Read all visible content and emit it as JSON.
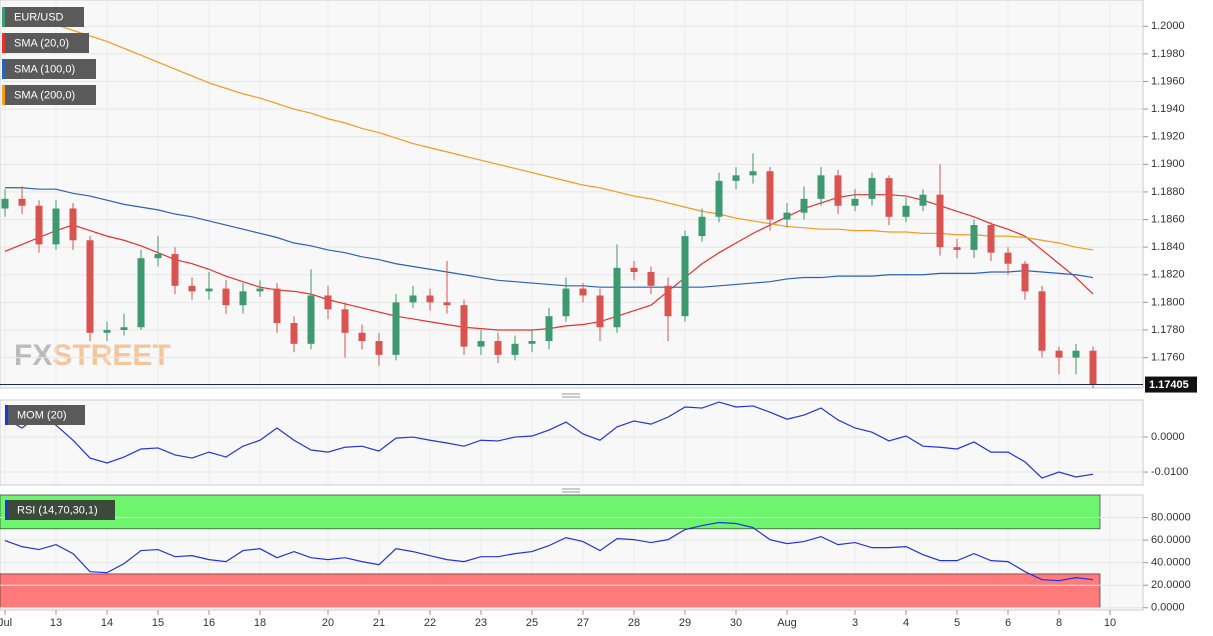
{
  "chart_data": [
    {
      "type": "candlestick",
      "title": "EUR/USD",
      "watermark": {
        "left": "FX",
        "right": "STREET"
      },
      "categories": [
        "Jul",
        null,
        null,
        "13",
        null,
        null,
        "14",
        null,
        null,
        "15",
        null,
        null,
        "16",
        null,
        null,
        "18",
        null,
        null,
        null,
        "20",
        null,
        null,
        "21",
        null,
        null,
        "22",
        null,
        null,
        "23",
        null,
        null,
        "25",
        null,
        null,
        "27",
        null,
        null,
        "28",
        null,
        null,
        "29",
        null,
        null,
        "30",
        null,
        null,
        "Aug",
        null,
        null,
        null,
        "3",
        null,
        null,
        "4",
        null,
        null,
        "5",
        null,
        null,
        "6",
        null,
        null,
        "8",
        null,
        null,
        "10"
      ],
      "open": [
        1.1868,
        1.1875,
        1.187,
        1.1842,
        1.1868,
        1.1845,
        1.1778,
        1.178,
        1.1782,
        1.1832,
        1.1835,
        1.1812,
        1.1808,
        1.181,
        1.1798,
        1.1808,
        1.181,
        1.1785,
        1.177,
        1.1805,
        1.1795,
        1.1778,
        1.1772,
        1.1762,
        1.18,
        1.1805,
        1.18,
        1.1798,
        1.1768,
        1.1772,
        1.1762,
        1.177,
        1.1772,
        1.179,
        1.181,
        1.1805,
        1.1782,
        1.1825,
        1.1822,
        1.1812,
        1.179,
        1.1848,
        1.1862,
        1.1888,
        1.1892,
        1.1895,
        1.186,
        1.1865,
        1.1875,
        1.1892,
        1.187,
        1.1875,
        1.189,
        1.1862,
        1.187,
        1.1878,
        1.184,
        1.1838,
        1.1856,
        1.1836,
        1.1828,
        1.1808,
        1.1765,
        1.176,
        1.1765,
        null
      ],
      "high": [
        1.1882,
        1.1884,
        1.1874,
        1.1874,
        1.1872,
        1.1848,
        1.1786,
        1.1792,
        1.1838,
        1.1848,
        1.184,
        1.1818,
        1.1822,
        1.1816,
        1.1814,
        1.1816,
        1.1814,
        1.179,
        1.1824,
        1.1812,
        1.18,
        1.1784,
        1.1778,
        1.1806,
        1.1812,
        1.181,
        1.183,
        1.1802,
        1.178,
        1.1778,
        1.1776,
        1.178,
        1.1796,
        1.1818,
        1.1814,
        1.181,
        1.1842,
        1.183,
        1.1826,
        1.1818,
        1.1852,
        1.1868,
        1.1894,
        1.1898,
        1.1908,
        1.1898,
        1.1872,
        1.1884,
        1.1898,
        1.1896,
        1.1882,
        1.1894,
        1.1892,
        1.1876,
        1.1882,
        1.19,
        1.1846,
        1.186,
        1.1858,
        1.184,
        1.183,
        1.1812,
        1.1768,
        1.177,
        1.1768,
        null
      ],
      "low": [
        1.1862,
        1.1864,
        1.1836,
        1.1838,
        1.1838,
        1.1772,
        1.1772,
        1.1776,
        1.178,
        1.1826,
        1.1806,
        1.1802,
        1.1802,
        1.1792,
        1.1792,
        1.1804,
        1.1778,
        1.1764,
        1.1766,
        1.1788,
        1.176,
        1.1766,
        1.1754,
        1.1758,
        1.1796,
        1.1794,
        1.1792,
        1.1762,
        1.1762,
        1.1756,
        1.1758,
        1.1764,
        1.1766,
        1.1786,
        1.18,
        1.1772,
        1.1778,
        1.1816,
        1.1806,
        1.1772,
        1.1786,
        1.1844,
        1.1858,
        1.1882,
        1.1886,
        1.1852,
        1.1854,
        1.186,
        1.187,
        1.1864,
        1.1866,
        1.187,
        1.1856,
        1.1858,
        1.1866,
        1.1834,
        1.1832,
        1.1832,
        1.183,
        1.182,
        1.1802,
        1.176,
        1.1748,
        1.1748,
        1.1738,
        null
      ],
      "close": [
        1.1875,
        1.187,
        1.1842,
        1.1868,
        1.1845,
        1.1778,
        1.178,
        1.1782,
        1.1832,
        1.1835,
        1.1812,
        1.1808,
        1.181,
        1.1798,
        1.1808,
        1.181,
        1.1785,
        1.177,
        1.1805,
        1.1795,
        1.1778,
        1.1772,
        1.1762,
        1.18,
        1.1805,
        1.18,
        1.1798,
        1.1768,
        1.1772,
        1.1762,
        1.177,
        1.1772,
        1.179,
        1.181,
        1.1805,
        1.1782,
        1.1825,
        1.1822,
        1.1812,
        1.179,
        1.1848,
        1.1862,
        1.1888,
        1.1892,
        1.1895,
        1.186,
        1.1865,
        1.1875,
        1.1892,
        1.187,
        1.1875,
        1.189,
        1.1862,
        1.187,
        1.1878,
        1.184,
        1.1838,
        1.1856,
        1.1836,
        1.1828,
        1.1808,
        1.1765,
        1.176,
        1.1765,
        1.17405,
        null
      ],
      "up_color": "#3d9970",
      "down_color": "#d9534f",
      "last_price": 1.17405,
      "series": [
        {
          "name": "SMA (20,0)",
          "color": "#e8312e",
          "values": [
            1.1837,
            1.1842,
            1.1847,
            1.1852,
            1.1856,
            1.1852,
            1.1848,
            1.1845,
            1.1841,
            1.1836,
            1.1831,
            1.1828,
            1.1824,
            1.1819,
            1.1815,
            1.1811,
            1.1809,
            1.1808,
            1.1806,
            1.1802,
            1.1799,
            1.1796,
            1.1793,
            1.179,
            1.1788,
            1.1786,
            1.1784,
            1.1782,
            1.1781,
            1.178,
            1.178,
            1.178,
            1.1781,
            1.1783,
            1.1784,
            1.1786,
            1.179,
            1.1794,
            1.1798,
            1.1808,
            1.1818,
            1.1828,
            1.1836,
            1.1843,
            1.185,
            1.1856,
            1.1862,
            1.1868,
            1.1872,
            1.1876,
            1.1878,
            1.1878,
            1.1878,
            1.1877,
            1.1874,
            1.187,
            1.1866,
            1.1862,
            1.1857,
            1.1853,
            1.1848,
            1.1838,
            1.1828,
            1.1818,
            1.1806,
            null
          ]
        },
        {
          "name": "SMA (100,0)",
          "color": "#2a62b8",
          "values": [
            1.1883,
            1.1883,
            1.1882,
            1.1882,
            1.1879,
            1.1877,
            1.1874,
            1.1871,
            1.1869,
            1.1867,
            1.1864,
            1.1862,
            1.1859,
            1.1856,
            1.1853,
            1.185,
            1.1847,
            1.1843,
            1.1841,
            1.1838,
            1.1836,
            1.1833,
            1.1831,
            1.1828,
            1.1826,
            1.1824,
            1.1822,
            1.182,
            1.1818,
            1.1816,
            1.1815,
            1.1814,
            1.1813,
            1.1812,
            1.1812,
            1.1811,
            1.1811,
            1.1811,
            1.1811,
            1.1811,
            1.1811,
            1.1811,
            1.1812,
            1.1813,
            1.1814,
            1.1815,
            1.1817,
            1.1818,
            1.1818,
            1.1819,
            1.1819,
            1.1819,
            1.182,
            1.182,
            1.182,
            1.1821,
            1.1821,
            1.1821,
            1.1822,
            1.1822,
            1.1823,
            1.1822,
            1.1821,
            1.182,
            1.1818,
            null
          ]
        },
        {
          "name": "SMA (200,0)",
          "color": "#f39c1f",
          "values": [
            1.2013,
            1.2009,
            1.2005,
            1.2001,
            1.1997,
            1.1993,
            1.1989,
            1.1984,
            1.1979,
            1.1974,
            1.1969,
            1.1964,
            1.1959,
            1.1955,
            1.1951,
            1.1948,
            1.1944,
            1.194,
            1.1937,
            1.1933,
            1.193,
            1.1926,
            1.1923,
            1.1919,
            1.1915,
            1.1912,
            1.1909,
            1.1906,
            1.1903,
            1.19,
            1.1897,
            1.1894,
            1.1891,
            1.1888,
            1.1885,
            1.1883,
            1.188,
            1.1877,
            1.1875,
            1.1872,
            1.1869,
            1.1866,
            1.1864,
            1.1861,
            1.1859,
            1.1857,
            1.1855,
            1.1854,
            1.1853,
            1.1853,
            1.1852,
            1.1852,
            1.1851,
            1.1851,
            1.185,
            1.185,
            1.1849,
            1.1849,
            1.1848,
            1.1848,
            1.1847,
            1.1845,
            1.1843,
            1.184,
            1.1838,
            null
          ]
        }
      ],
      "ylim": [
        1.1738,
        1.2019
      ],
      "yticks": [
        {
          "value": 1.2,
          "label": "1.2000"
        },
        {
          "value": 1.198,
          "label": "1.1980"
        },
        {
          "value": 1.196,
          "label": "1.1960"
        },
        {
          "value": 1.194,
          "label": "1.1940"
        },
        {
          "value": 1.192,
          "label": "1.1920"
        },
        {
          "value": 1.19,
          "label": "1.1900"
        },
        {
          "value": 1.188,
          "label": "1.1880"
        },
        {
          "value": 1.186,
          "label": "1.1860"
        },
        {
          "value": 1.184,
          "label": "1.1840"
        },
        {
          "value": 1.182,
          "label": "1.1820"
        },
        {
          "value": 1.18,
          "label": "1.1800"
        },
        {
          "value": 1.178,
          "label": "1.1780"
        },
        {
          "value": 1.176,
          "label": "1.1760"
        }
      ],
      "grid": true
    },
    {
      "type": "line",
      "title": "MOM (20)",
      "color": "#2233dd",
      "values": [
        0.0054,
        0.0026,
        0.0063,
        0.0034,
        -0.0009,
        -0.006,
        -0.0074,
        -0.0057,
        -0.0034,
        -0.0031,
        -0.0051,
        -0.006,
        -0.0043,
        -0.0057,
        -0.0026,
        -0.0009,
        0.0026,
        -0.0009,
        -0.0037,
        -0.0043,
        -0.0029,
        -0.0026,
        -0.004,
        -0.0003,
        0.0,
        -0.0009,
        -0.0017,
        -0.0026,
        -0.0009,
        -0.0011,
        0.0,
        0.0003,
        0.002,
        0.0043,
        0.0009,
        -0.0009,
        0.0029,
        0.0046,
        0.0037,
        0.0057,
        0.0086,
        0.0083,
        0.01,
        0.0086,
        0.0089,
        0.0071,
        0.0051,
        0.0063,
        0.0083,
        0.0049,
        0.0026,
        0.0014,
        -0.0011,
        0.0003,
        -0.0026,
        -0.0029,
        -0.0034,
        -0.0014,
        -0.0043,
        -0.0043,
        -0.0071,
        -0.0117,
        -0.01,
        -0.0114,
        -0.0106,
        null
      ],
      "ylim": [
        -0.0137,
        0.0106
      ],
      "yticks": [
        {
          "value": 0,
          "label": "0.0000"
        },
        {
          "value": -0.01,
          "label": "-0.0100"
        }
      ],
      "grid": true
    },
    {
      "type": "line",
      "title": "RSI (14,70,30,1)",
      "color": "#2233dd",
      "values": [
        59.6,
        54.2,
        51.6,
        56.0,
        48.0,
        32.0,
        31.1,
        39.1,
        50.7,
        51.6,
        45.3,
        46.2,
        42.7,
        40.9,
        50.7,
        52.4,
        44.4,
        49.8,
        44.4,
        42.7,
        44.4,
        40.9,
        38.2,
        52.4,
        49.8,
        46.2,
        42.7,
        40.9,
        45.3,
        45.3,
        48.0,
        49.8,
        55.1,
        62.2,
        58.7,
        50.7,
        61.3,
        60.4,
        57.8,
        60.4,
        69.3,
        72.9,
        75.6,
        74.7,
        71.1,
        60.4,
        56.9,
        58.7,
        63.1,
        56.0,
        57.8,
        53.3,
        53.3,
        54.2,
        47.1,
        41.8,
        41.8,
        48.0,
        41.8,
        40.9,
        32.0,
        24.9,
        24.0,
        26.7,
        24.9,
        null
      ],
      "bands": [
        {
          "from": 70,
          "to": 100,
          "color": "#6ef56e"
        },
        {
          "from": 0,
          "to": 30,
          "color": "#ff7b7b"
        }
      ],
      "ylim": [
        -2,
        100
      ],
      "yticks": [
        {
          "value": 80,
          "label": "80.0000"
        },
        {
          "value": 60,
          "label": "60.0000"
        },
        {
          "value": 40,
          "label": "40.0000"
        },
        {
          "value": 20,
          "label": "20.0000"
        },
        {
          "value": 0,
          "label": "0.0000"
        }
      ],
      "grid": true
    }
  ]
}
